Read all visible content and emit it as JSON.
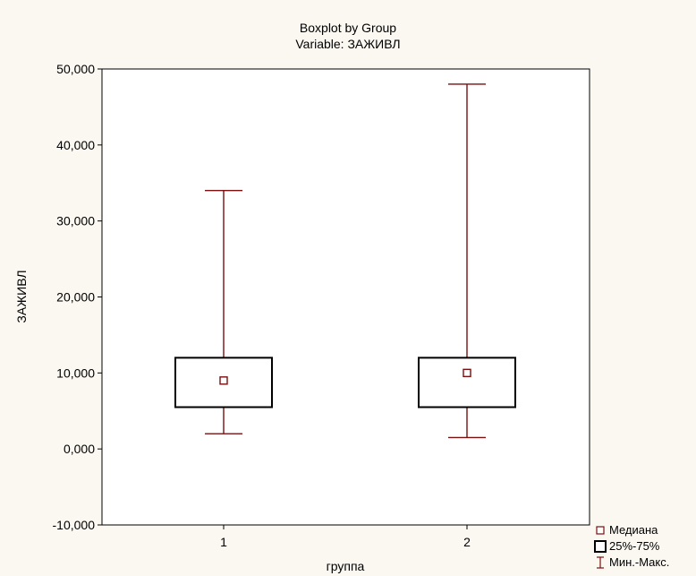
{
  "chart_data": {
    "type": "boxplot",
    "title": "Boxplot by Group",
    "subtitle": "Variable: ЗАЖИВЛ",
    "xlabel": "группа",
    "ylabel": "ЗАЖИВЛ",
    "ylim": [
      -10,
      50
    ],
    "y_ticks": [
      "-10,000",
      "0,000",
      "10,000",
      "20,000",
      "30,000",
      "40,000",
      "50,000"
    ],
    "categories": [
      "1",
      "2"
    ],
    "series": [
      {
        "category": "1",
        "min": 2,
        "q1": 5.5,
        "median": 9,
        "q3": 12,
        "max": 34
      },
      {
        "category": "2",
        "min": 1.5,
        "q1": 5.5,
        "median": 10,
        "q3": 12,
        "max": 48
      }
    ],
    "legend": [
      {
        "label": "Медиана",
        "icon": "median-square-icon"
      },
      {
        "label": "25%-75%",
        "icon": "box-icon"
      },
      {
        "label": "Мин.-Макс.",
        "icon": "whisker-icon"
      }
    ],
    "legend_position": "bottom-right",
    "colors": {
      "box": "#7a0f0f",
      "axis": "#000000",
      "background": "#fbf8f2",
      "plot_background": "#ffffff"
    }
  }
}
